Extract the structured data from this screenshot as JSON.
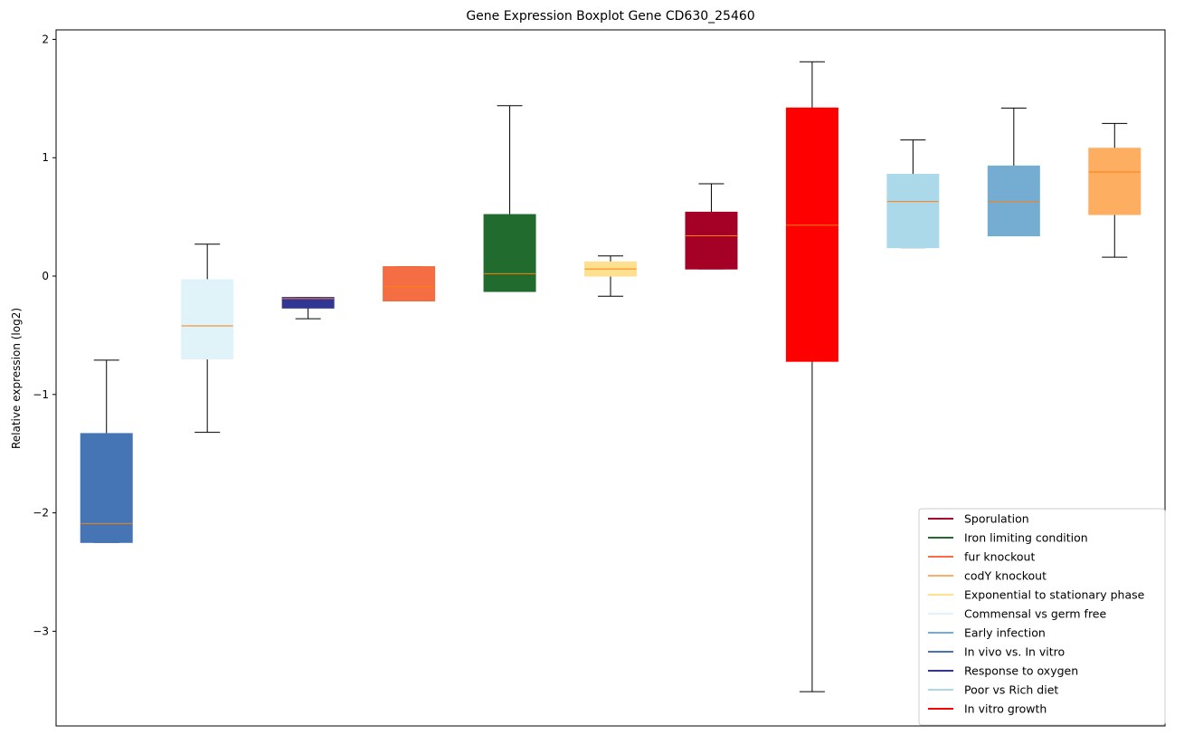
{
  "chart_data": {
    "type": "box",
    "title": "Gene Expression Boxplot Gene CD630_25460",
    "xlabel": "",
    "ylabel": "Relative expression (log2)",
    "ylim": [
      -3.8,
      2.08
    ],
    "yticks": [
      -3,
      -2,
      -1,
      0,
      1,
      2
    ],
    "ytick_labels": [
      "−3",
      "−2",
      "−1",
      "0",
      "1",
      "2"
    ],
    "grid": false,
    "legend_position": "lower-right",
    "median_color": "#ff7f0e",
    "boxes": [
      {
        "whisker_low": -2.25,
        "q1": -2.25,
        "median": -2.09,
        "q3": -1.33,
        "whisker_high": -0.71,
        "color": "#4575b4"
      },
      {
        "whisker_low": -1.32,
        "q1": -0.7,
        "median": -0.42,
        "q3": -0.03,
        "whisker_high": 0.27,
        "color": "#e0f3f8"
      },
      {
        "whisker_low": -0.36,
        "q1": -0.27,
        "median": -0.19,
        "q3": -0.18,
        "whisker_high": -0.18,
        "color": "#313695"
      },
      {
        "whisker_low": -0.21,
        "q1": -0.21,
        "median": -0.09,
        "q3": 0.08,
        "whisker_high": 0.08,
        "color": "#f46d43"
      },
      {
        "whisker_low": -0.13,
        "q1": -0.13,
        "median": 0.02,
        "q3": 0.52,
        "whisker_high": 1.44,
        "color": "#226b2e"
      },
      {
        "whisker_low": -0.17,
        "q1": 0.0,
        "median": 0.06,
        "q3": 0.12,
        "whisker_high": 0.17,
        "color": "#fee090"
      },
      {
        "whisker_low": 0.06,
        "q1": 0.06,
        "median": 0.34,
        "q3": 0.54,
        "whisker_high": 0.78,
        "color": "#a50026"
      },
      {
        "whisker_low": -3.51,
        "q1": -0.72,
        "median": 0.43,
        "q3": 1.42,
        "whisker_high": 1.81,
        "color": "#ff0000"
      },
      {
        "whisker_low": 0.24,
        "q1": 0.24,
        "median": 0.63,
        "q3": 0.86,
        "whisker_high": 1.15,
        "color": "#abd9e9"
      },
      {
        "whisker_low": 0.34,
        "q1": 0.34,
        "median": 0.63,
        "q3": 0.93,
        "whisker_high": 1.42,
        "color": "#74add1"
      },
      {
        "whisker_low": 0.16,
        "q1": 0.52,
        "median": 0.88,
        "q3": 1.08,
        "whisker_high": 1.29,
        "color": "#fdae61"
      }
    ],
    "legend": [
      {
        "label": "Sporulation",
        "color": "#a50026"
      },
      {
        "label": "Iron limiting condition",
        "color": "#226b2e"
      },
      {
        "label": "fur knockout",
        "color": "#f46d43"
      },
      {
        "label": "codY knockout",
        "color": "#fdae61"
      },
      {
        "label": "Exponential to stationary phase",
        "color": "#fee090"
      },
      {
        "label": "Commensal vs germ free",
        "color": "#e0f3f8"
      },
      {
        "label": "Early infection",
        "color": "#74add1"
      },
      {
        "label": "In vivo vs. In vitro",
        "color": "#4575b4"
      },
      {
        "label": "Response to oxygen",
        "color": "#313695"
      },
      {
        "label": "Poor vs Rich diet",
        "color": "#abd9e9"
      },
      {
        "label": "In vitro growth",
        "color": "#ff0000"
      }
    ]
  }
}
